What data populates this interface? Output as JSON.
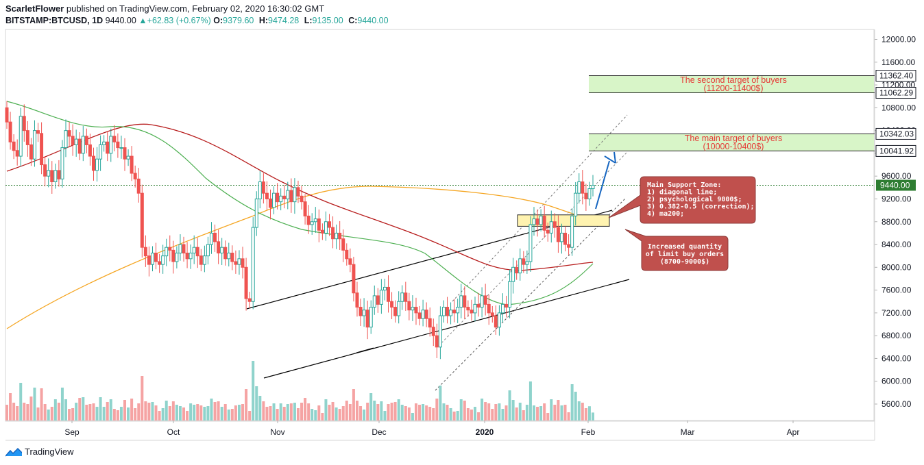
{
  "header": {
    "author": "ScarletFlower",
    "published": "published on TradingView.com, February 02, 2020 16:30:02 GMT",
    "symbol": "BITSTAMP:BTCUSD, 1D",
    "last": "9440.00",
    "change": "+62.83 (+0.67%)",
    "o_label": "O:",
    "o_value": "9379.60",
    "h_label": "H:",
    "h_value": "9474.28",
    "l_label": "L:",
    "l_value": "9135.00",
    "c_label": "C:",
    "c_value": "9440.00"
  },
  "brand": {
    "name": "TradingView",
    "icon": "tradingview-logo-icon"
  },
  "colors": {
    "up": "#26a69a",
    "down": "#ef5350",
    "ma50": "#4caf50",
    "ma100": "#b71c1c",
    "ma200": "#f5a623",
    "target_fill": "#d8f5c8",
    "support_fill": "#fff3b0",
    "callout": "#c0504d"
  },
  "chart_data": {
    "type": "candlestick",
    "y_ticks": [
      12000,
      11600,
      11200,
      10800,
      10400,
      10000,
      9600,
      9200,
      8800,
      8400,
      8000,
      7600,
      7200,
      6800,
      6400,
      6000,
      5600
    ],
    "y_tick_labels": [
      "12000.00",
      "11600.00",
      "11200.00",
      "10800.00",
      "10400.00",
      "10000.00",
      "9600.00",
      "9200.00",
      "8800.00",
      "8400.00",
      "8000.00",
      "7600.00",
      "7200.00",
      "6800.00",
      "6400.00",
      "6000.00",
      "5600.00"
    ],
    "x_labels": [
      "Sep",
      "Oct",
      "Nov",
      "Dec",
      "2020",
      "Feb",
      "Mar",
      "Apr"
    ],
    "price_labels": [
      {
        "value": 11362.4,
        "text": "11362.40",
        "style": "outline"
      },
      {
        "value": 11062.29,
        "text": "11062.29",
        "style": "outline"
      },
      {
        "value": 10342.03,
        "text": "10342.03",
        "style": "outline"
      },
      {
        "value": 10041.92,
        "text": "10041.92",
        "style": "outline"
      },
      {
        "value": 9440.0,
        "text": "9440.00",
        "style": "filled"
      }
    ],
    "zones": [
      {
        "low": 11062.29,
        "high": 11362.4,
        "line1": "The second target of buyers",
        "line2": "(11200-11400$)"
      },
      {
        "low": 10041.92,
        "high": 10342.03,
        "line1": "The main target of buyers",
        "line2": "(10000-10400$)"
      }
    ],
    "support_zone": {
      "low": 8720,
      "high": 8920
    },
    "callouts": [
      {
        "lines": [
          "Main Support Zone:",
          "1) diagonal line;",
          "2) psychological 9000$;",
          "3) 0.382-0.5 (correction);",
          "4) ma200;"
        ]
      },
      {
        "lines": [
          "Increased quantity",
          "of limit buy orders",
          "(8700-9000$)"
        ]
      }
    ],
    "candles_approx": [
      [
        10800,
        10550
      ],
      [
        10550,
        10200
      ],
      [
        10200,
        10050
      ],
      [
        10050,
        9950
      ],
      [
        9950,
        10650
      ],
      [
        10650,
        10400
      ],
      [
        10400,
        10150
      ],
      [
        10150,
        9900
      ],
      [
        9900,
        10400
      ],
      [
        10400,
        10350
      ],
      [
        10350,
        9800
      ],
      [
        9800,
        9600
      ],
      [
        9600,
        9700
      ],
      [
        9700,
        9500
      ],
      [
        9500,
        9700
      ],
      [
        9700,
        9550
      ],
      [
        9550,
        10100
      ],
      [
        10100,
        10400
      ],
      [
        10400,
        10300
      ],
      [
        10300,
        10150
      ],
      [
        10150,
        10250
      ],
      [
        10250,
        10000
      ],
      [
        10000,
        10300
      ],
      [
        10300,
        10150
      ],
      [
        10150,
        9950
      ],
      [
        9950,
        9700
      ],
      [
        9700,
        9900
      ],
      [
        9900,
        10150
      ],
      [
        10150,
        10200
      ],
      [
        10200,
        10000
      ],
      [
        10000,
        10300
      ],
      [
        10300,
        10200
      ],
      [
        10200,
        10100
      ],
      [
        10100,
        10100
      ],
      [
        10100,
        9900
      ],
      [
        9900,
        9950
      ],
      [
        9950,
        9650
      ],
      [
        9650,
        9550
      ],
      [
        9550,
        9300
      ],
      [
        9300,
        8350
      ],
      [
        8350,
        8200
      ],
      [
        8200,
        8050
      ],
      [
        8050,
        8250
      ],
      [
        8250,
        8100
      ],
      [
        8100,
        8050
      ],
      [
        8050,
        8200
      ],
      [
        8200,
        8350
      ],
      [
        8350,
        8300
      ],
      [
        8300,
        8100
      ],
      [
        8100,
        8250
      ],
      [
        8250,
        8400
      ],
      [
        8400,
        8250
      ],
      [
        8250,
        8150
      ],
      [
        8150,
        8250
      ],
      [
        8250,
        8350
      ],
      [
        8350,
        8200
      ],
      [
        8200,
        8050
      ],
      [
        8050,
        8200
      ],
      [
        8200,
        8400
      ],
      [
        8400,
        8600
      ],
      [
        8600,
        8450
      ],
      [
        8450,
        8250
      ],
      [
        8250,
        8350
      ],
      [
        8350,
        8150
      ],
      [
        8150,
        8250
      ],
      [
        8250,
        8100
      ],
      [
        8100,
        8050
      ],
      [
        8050,
        8150
      ],
      [
        8150,
        8000
      ],
      [
        8000,
        7450
      ],
      [
        7450,
        7400
      ],
      [
        7400,
        8700
      ],
      [
        8700,
        9200
      ],
      [
        9200,
        9500
      ],
      [
        9500,
        9300
      ],
      [
        9300,
        9200
      ],
      [
        9200,
        9050
      ],
      [
        9050,
        9300
      ],
      [
        9300,
        9150
      ],
      [
        9150,
        9250
      ],
      [
        9250,
        9200
      ],
      [
        9200,
        9350
      ],
      [
        9350,
        9150
      ],
      [
        9150,
        9400
      ],
      [
        9400,
        9250
      ],
      [
        9250,
        9150
      ],
      [
        9150,
        8900
      ],
      [
        8900,
        8750
      ],
      [
        8750,
        8800
      ],
      [
        8800,
        8850
      ],
      [
        8850,
        8650
      ],
      [
        8650,
        8600
      ],
      [
        8600,
        8800
      ],
      [
        8800,
        8700
      ],
      [
        8700,
        8500
      ],
      [
        8500,
        8600
      ],
      [
        8600,
        8500
      ],
      [
        8500,
        8300
      ],
      [
        8300,
        8150
      ],
      [
        8150,
        8050
      ],
      [
        8050,
        7550
      ],
      [
        7550,
        7300
      ],
      [
        7300,
        7150
      ],
      [
        7150,
        7250
      ],
      [
        7250,
        6950
      ],
      [
        6950,
        7300
      ],
      [
        7300,
        7500
      ],
      [
        7500,
        7350
      ],
      [
        7350,
        7600
      ],
      [
        7600,
        7650
      ],
      [
        7650,
        7400
      ],
      [
        7400,
        7300
      ],
      [
        7300,
        7150
      ],
      [
        7150,
        7400
      ],
      [
        7400,
        7550
      ],
      [
        7550,
        7400
      ],
      [
        7400,
        7250
      ],
      [
        7250,
        7300
      ],
      [
        7300,
        7200
      ],
      [
        7200,
        7100
      ],
      [
        7100,
        7250
      ],
      [
        7250,
        7100
      ],
      [
        7100,
        6950
      ],
      [
        6950,
        6800
      ],
      [
        6800,
        6600
      ],
      [
        6600,
        7150
      ],
      [
        7150,
        7300
      ],
      [
        7300,
        7150
      ],
      [
        7150,
        7250
      ],
      [
        7250,
        7200
      ],
      [
        7200,
        7300
      ],
      [
        7300,
        7500
      ],
      [
        7500,
        7300
      ],
      [
        7300,
        7250
      ],
      [
        7250,
        7200
      ],
      [
        7200,
        7350
      ],
      [
        7350,
        7300
      ],
      [
        7300,
        7500
      ],
      [
        7500,
        7350
      ],
      [
        7350,
        7200
      ],
      [
        7200,
        7150
      ],
      [
        7150,
        6950
      ],
      [
        6950,
        7200
      ],
      [
        7200,
        7350
      ],
      [
        7350,
        7300
      ],
      [
        7300,
        7750
      ],
      [
        7750,
        8000
      ],
      [
        8000,
        7900
      ],
      [
        7900,
        8150
      ],
      [
        8150,
        8050
      ],
      [
        8050,
        8100
      ],
      [
        8100,
        8750
      ],
      [
        8750,
        8850
      ],
      [
        8850,
        8750
      ],
      [
        8750,
        8900
      ],
      [
        8900,
        8650
      ],
      [
        8650,
        8600
      ],
      [
        8600,
        8800
      ],
      [
        8800,
        8700
      ],
      [
        8700,
        8450
      ],
      [
        8450,
        8600
      ],
      [
        8600,
        8400
      ],
      [
        8400,
        8350
      ],
      [
        8350,
        8900
      ],
      [
        8900,
        9300
      ],
      [
        9300,
        9500
      ],
      [
        9500,
        9300
      ],
      [
        9300,
        9200
      ],
      [
        9200,
        9380
      ],
      [
        9380,
        9440
      ]
    ],
    "ma": [
      "MA50",
      "MA100",
      "MA200"
    ]
  }
}
